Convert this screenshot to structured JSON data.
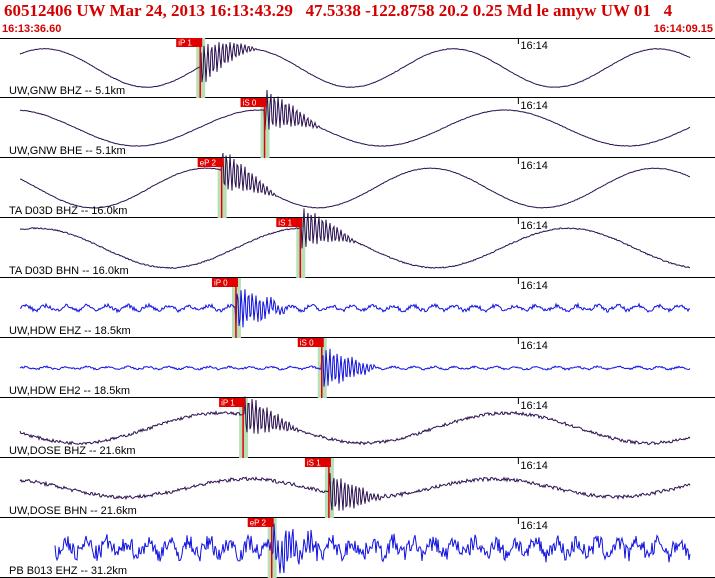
{
  "header": {
    "title": "60512406 UW Mar 24, 2013 16:13:43.29   47.5338 -122.8758 20.2 0.25 Md le amyw UW 01   4",
    "start_time": "16:13:36.60",
    "end_time": "16:14:09.15"
  },
  "time_tick_label": "16:14",
  "colors": {
    "pick": "#e00000",
    "highlight": "#b8e0b8",
    "broadband_trace": "#2a1050",
    "short_period_trace": "#1010e0"
  },
  "channels": [
    {
      "label": "UW,GNW BHZ -- 5.1km",
      "pick_label": "iP 1",
      "pick_time": 0.28,
      "trace_type": "broadband",
      "amp": 0.32,
      "period": 0.1,
      "phase": 0.2,
      "noise": 0.01
    },
    {
      "label": "UW,GNW BHE -- 5.1km",
      "pick_label": "iS 0",
      "pick_time": 0.37,
      "trace_type": "broadband",
      "amp": 0.3,
      "period": 0.12,
      "phase": 1.2,
      "noise": 0.01
    },
    {
      "label": "TA D03D BHZ -- 16.0km",
      "pick_label": "eP 2",
      "pick_time": 0.31,
      "trace_type": "broadband",
      "amp": 0.33,
      "period": 0.11,
      "phase": 2.1,
      "noise": 0.01
    },
    {
      "label": "TA D03D BHN -- 16.0km",
      "pick_label": "iS 1",
      "pick_time": 0.42,
      "trace_type": "broadband",
      "amp": 0.33,
      "period": 0.13,
      "phase": 0.7,
      "noise": 0.02
    },
    {
      "label": "UW,HDW EHZ -- 18.5km",
      "pick_label": "iP 0",
      "pick_time": 0.33,
      "trace_type": "short",
      "amp": 0.04,
      "period": 0.01,
      "phase": 0.0,
      "noise": 0.06
    },
    {
      "label": "UW,HDW EH2 -- 18.5km",
      "pick_label": "iS 0",
      "pick_time": 0.45,
      "trace_type": "short",
      "amp": 0.02,
      "period": 0.01,
      "phase": 0.0,
      "noise": 0.03
    },
    {
      "label": "UW,DOSE BHZ -- 21.6km",
      "pick_label": "iP 1",
      "pick_time": 0.34,
      "trace_type": "broadband",
      "amp": 0.25,
      "period": 0.14,
      "phase": 3.0,
      "noise": 0.05
    },
    {
      "label": "UW,DOSE BHN -- 21.6km",
      "pick_label": "iS 1",
      "pick_time": 0.46,
      "trace_type": "broadband",
      "amp": 0.15,
      "period": 0.12,
      "phase": 1.5,
      "noise": 0.06
    },
    {
      "label": "PB B013 EHZ -- 31.2km",
      "pick_label": "eP 2",
      "pick_time": 0.38,
      "trace_type": "short",
      "amp": 0.1,
      "period": 0.01,
      "phase": 0.0,
      "noise": 0.28
    }
  ]
}
